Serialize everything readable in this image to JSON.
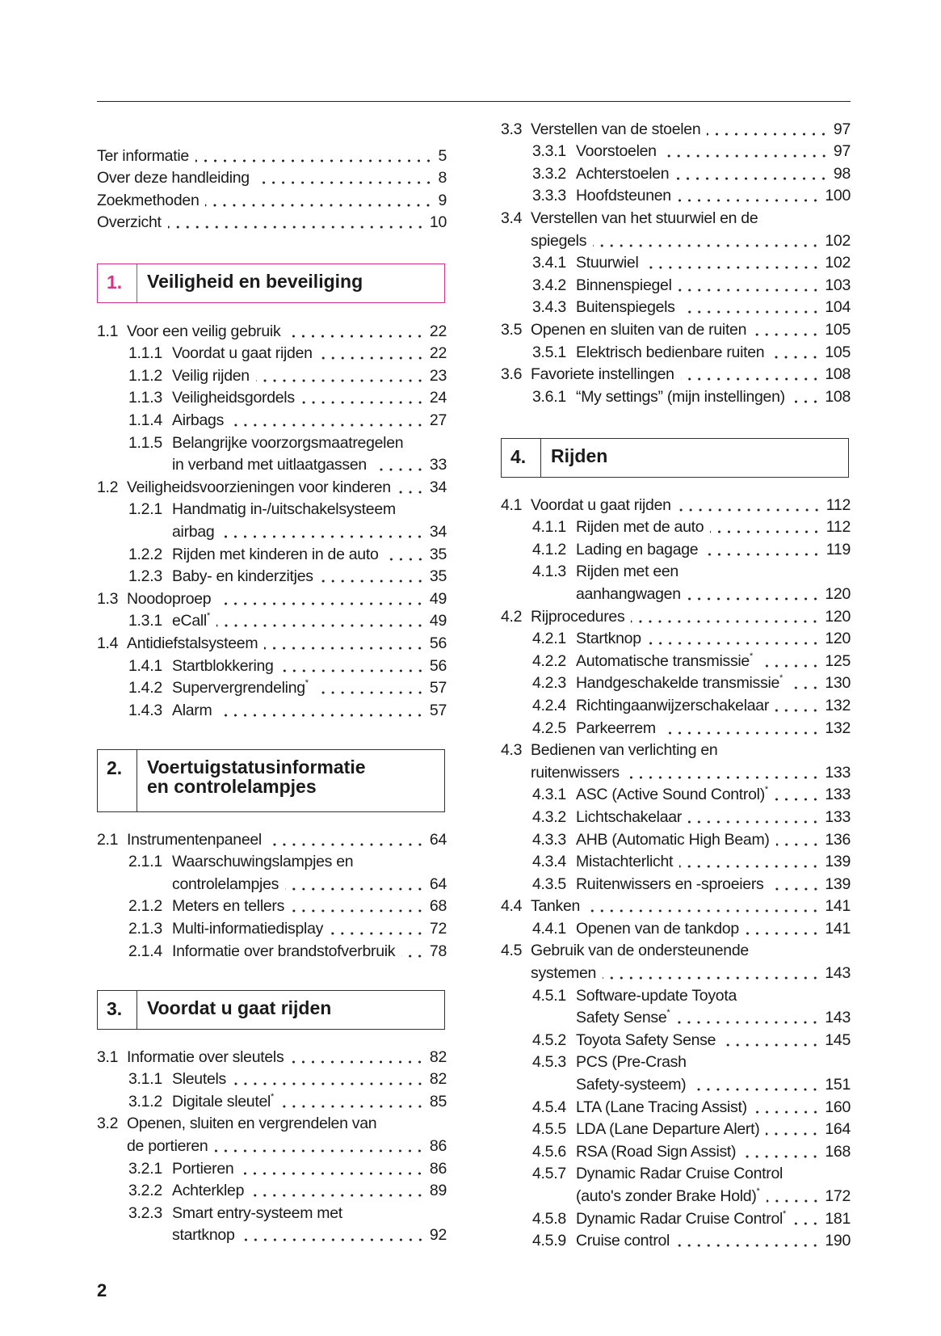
{
  "accent_color": "#d6338a",
  "page_number": "2",
  "front_matter": [
    {
      "title": "Ter informatie",
      "page": "5"
    },
    {
      "title": "Over deze handleiding",
      "page": "8"
    },
    {
      "title": "Zoekmethoden",
      "page": "9"
    },
    {
      "title": "Overzicht",
      "page": "10"
    }
  ],
  "chapters": [
    {
      "number": "1.",
      "title": "Veiligheid en beveiliging",
      "entries": [
        {
          "num": "1.1",
          "level": 1,
          "lines": [
            "Voor een veilig gebruik"
          ],
          "page": "22"
        },
        {
          "num": "1.1.1",
          "level": 2,
          "lines": [
            "Voordat u gaat rijden"
          ],
          "page": "22"
        },
        {
          "num": "1.1.2",
          "level": 2,
          "lines": [
            "Veilig rijden"
          ],
          "page": "23"
        },
        {
          "num": "1.1.3",
          "level": 2,
          "lines": [
            "Veiligheidsgordels"
          ],
          "page": "24"
        },
        {
          "num": "1.1.4",
          "level": 2,
          "lines": [
            "Airbags"
          ],
          "page": "27"
        },
        {
          "num": "1.1.5",
          "level": 2,
          "lines": [
            "Belangrijke voorzorgsmaatregelen",
            "in verband met uitlaatgassen"
          ],
          "page": "33"
        },
        {
          "num": "1.2",
          "level": 1,
          "lines": [
            "Veiligheidsvoorzieningen voor kinderen"
          ],
          "page": "34"
        },
        {
          "num": "1.2.1",
          "level": 2,
          "lines": [
            "Handmatig in-/uitschakelsysteem",
            "airbag"
          ],
          "page": "34"
        },
        {
          "num": "1.2.2",
          "level": 2,
          "lines": [
            "Rijden met kinderen in de auto"
          ],
          "page": "35"
        },
        {
          "num": "1.2.3",
          "level": 2,
          "lines": [
            "Baby- en kinderzitjes"
          ],
          "page": "35"
        },
        {
          "num": "1.3",
          "level": 1,
          "lines": [
            "Noodoproep"
          ],
          "page": "49"
        },
        {
          "num": "1.3.1",
          "level": 2,
          "lines": [
            "eCall"
          ],
          "note": "*",
          "page": "49"
        },
        {
          "num": "1.4",
          "level": 1,
          "lines": [
            "Antidiefstalsysteem"
          ],
          "page": "56"
        },
        {
          "num": "1.4.1",
          "level": 2,
          "lines": [
            "Startblokkering"
          ],
          "page": "56"
        },
        {
          "num": "1.4.2",
          "level": 2,
          "lines": [
            "Supervergrendeling"
          ],
          "note": "*",
          "page": "57"
        },
        {
          "num": "1.4.3",
          "level": 2,
          "lines": [
            "Alarm"
          ],
          "page": "57"
        }
      ]
    },
    {
      "number": "2.",
      "title": "Voertuigstatusinformatie en controlelampjes",
      "entries": [
        {
          "num": "2.1",
          "level": 1,
          "lines": [
            "Instrumentenpaneel"
          ],
          "page": "64"
        },
        {
          "num": "2.1.1",
          "level": 2,
          "lines": [
            "Waarschuwingslampjes en",
            "controlelampjes"
          ],
          "page": "64"
        },
        {
          "num": "2.1.2",
          "level": 2,
          "lines": [
            "Meters en tellers"
          ],
          "page": "68"
        },
        {
          "num": "2.1.3",
          "level": 2,
          "lines": [
            "Multi-informatiedisplay"
          ],
          "page": "72"
        },
        {
          "num": "2.1.4",
          "level": 2,
          "lines": [
            "Informatie over brandstofverbruik"
          ],
          "page": "78"
        }
      ]
    },
    {
      "number": "3.",
      "title": "Voordat u gaat rijden",
      "entries": [
        {
          "num": "3.1",
          "level": 1,
          "lines": [
            "Informatie over sleutels"
          ],
          "page": "82"
        },
        {
          "num": "3.1.1",
          "level": 2,
          "lines": [
            "Sleutels"
          ],
          "page": "82"
        },
        {
          "num": "3.1.2",
          "level": 2,
          "lines": [
            "Digitale sleutel"
          ],
          "note": "*",
          "page": "85"
        },
        {
          "num": "3.2",
          "level": 1,
          "lines": [
            "Openen, sluiten en vergrendelen van",
            "de portieren"
          ],
          "page": "86"
        },
        {
          "num": "3.2.1",
          "level": 2,
          "lines": [
            "Portieren"
          ],
          "page": "86"
        },
        {
          "num": "3.2.2",
          "level": 2,
          "lines": [
            "Achterklep"
          ],
          "page": "89"
        },
        {
          "num": "3.2.3",
          "level": 2,
          "lines": [
            "Smart entry-systeem met",
            "startknop"
          ],
          "page": "92"
        },
        {
          "num": "3.3",
          "level": 1,
          "lines": [
            "Verstellen van de stoelen"
          ],
          "page": "97"
        },
        {
          "num": "3.3.1",
          "level": 2,
          "lines": [
            "Voorstoelen"
          ],
          "page": "97"
        },
        {
          "num": "3.3.2",
          "level": 2,
          "lines": [
            "Achterstoelen"
          ],
          "page": "98"
        },
        {
          "num": "3.3.3",
          "level": 2,
          "lines": [
            "Hoofdsteunen"
          ],
          "page": "100"
        },
        {
          "num": "3.4",
          "level": 1,
          "lines": [
            "Verstellen van het stuurwiel en de",
            "spiegels"
          ],
          "page": "102"
        },
        {
          "num": "3.4.1",
          "level": 2,
          "lines": [
            "Stuurwiel"
          ],
          "page": "102"
        },
        {
          "num": "3.4.2",
          "level": 2,
          "lines": [
            "Binnenspiegel"
          ],
          "page": "103"
        },
        {
          "num": "3.4.3",
          "level": 2,
          "lines": [
            "Buitenspiegels"
          ],
          "page": "104"
        },
        {
          "num": "3.5",
          "level": 1,
          "lines": [
            "Openen en sluiten van de ruiten"
          ],
          "page": "105"
        },
        {
          "num": "3.5.1",
          "level": 2,
          "lines": [
            "Elektrisch bedienbare ruiten"
          ],
          "page": "105"
        },
        {
          "num": "3.6",
          "level": 1,
          "lines": [
            "Favoriete instellingen"
          ],
          "page": "108"
        },
        {
          "num": "3.6.1",
          "level": 2,
          "lines": [
            "“My settings” (mijn instellingen)"
          ],
          "page": "108"
        }
      ]
    },
    {
      "number": "4.",
      "title": "Rijden",
      "entries": [
        {
          "num": "4.1",
          "level": 1,
          "lines": [
            "Voordat u gaat rijden"
          ],
          "page": "112"
        },
        {
          "num": "4.1.1",
          "level": 2,
          "lines": [
            "Rijden met de auto"
          ],
          "page": "112"
        },
        {
          "num": "4.1.2",
          "level": 2,
          "lines": [
            "Lading en bagage"
          ],
          "page": "119"
        },
        {
          "num": "4.1.3",
          "level": 2,
          "lines": [
            "Rijden met een",
            "aanhangwagen"
          ],
          "page": "120"
        },
        {
          "num": "4.2",
          "level": 1,
          "lines": [
            "Rijprocedures"
          ],
          "page": "120"
        },
        {
          "num": "4.2.1",
          "level": 2,
          "lines": [
            "Startknop"
          ],
          "page": "120"
        },
        {
          "num": "4.2.2",
          "level": 2,
          "lines": [
            "Automatische transmissie"
          ],
          "note": "*",
          "page": "125"
        },
        {
          "num": "4.2.3",
          "level": 2,
          "lines": [
            "Handgeschakelde transmissie"
          ],
          "note": "*",
          "page": "130"
        },
        {
          "num": "4.2.4",
          "level": 2,
          "lines": [
            "Richtingaanwijzerschakelaar"
          ],
          "page": "132"
        },
        {
          "num": "4.2.5",
          "level": 2,
          "lines": [
            "Parkeerrem"
          ],
          "page": "132"
        },
        {
          "num": "4.3",
          "level": 1,
          "lines": [
            "Bedienen van verlichting en",
            "ruitenwissers"
          ],
          "page": "133"
        },
        {
          "num": "4.3.1",
          "level": 2,
          "lines": [
            "ASC (Active Sound Control)"
          ],
          "note": "*",
          "page": "133"
        },
        {
          "num": "4.3.2",
          "level": 2,
          "lines": [
            "Lichtschakelaar"
          ],
          "page": "133"
        },
        {
          "num": "4.3.3",
          "level": 2,
          "lines": [
            "AHB (Automatic High Beam)"
          ],
          "page": "136"
        },
        {
          "num": "4.3.4",
          "level": 2,
          "lines": [
            "Mistachterlicht"
          ],
          "page": "139"
        },
        {
          "num": "4.3.5",
          "level": 2,
          "lines": [
            "Ruitenwissers en -sproeiers"
          ],
          "page": "139"
        },
        {
          "num": "4.4",
          "level": 1,
          "lines": [
            "Tanken"
          ],
          "page": "141"
        },
        {
          "num": "4.4.1",
          "level": 2,
          "lines": [
            "Openen van de tankdop"
          ],
          "page": "141"
        },
        {
          "num": "4.5",
          "level": 1,
          "lines": [
            "Gebruik van de ondersteunende",
            "systemen"
          ],
          "page": "143"
        },
        {
          "num": "4.5.1",
          "level": 2,
          "lines": [
            "Software-update Toyota",
            "Safety Sense"
          ],
          "note": "*",
          "page": "143"
        },
        {
          "num": "4.5.2",
          "level": 2,
          "lines": [
            "Toyota Safety Sense"
          ],
          "page": "145"
        },
        {
          "num": "4.5.3",
          "level": 2,
          "lines": [
            "PCS (Pre-Crash",
            "Safety-systeem)"
          ],
          "page": "151"
        },
        {
          "num": "4.5.4",
          "level": 2,
          "lines": [
            "LTA (Lane Tracing Assist)"
          ],
          "page": "160"
        },
        {
          "num": "4.5.5",
          "level": 2,
          "lines": [
            "LDA (Lane Departure Alert)"
          ],
          "page": "164"
        },
        {
          "num": "4.5.6",
          "level": 2,
          "lines": [
            "RSA (Road Sign Assist)"
          ],
          "page": "168"
        },
        {
          "num": "4.5.7",
          "level": 2,
          "lines": [
            "Dynamic Radar Cruise Control",
            "(auto's zonder Brake Hold)"
          ],
          "note": "*",
          "page": "172"
        },
        {
          "num": "4.5.8",
          "level": 2,
          "lines": [
            "Dynamic Radar Cruise Control"
          ],
          "note": "*",
          "page": "181"
        },
        {
          "num": "4.5.9",
          "level": 2,
          "lines": [
            "Cruise control"
          ],
          "page": "190"
        }
      ]
    }
  ]
}
